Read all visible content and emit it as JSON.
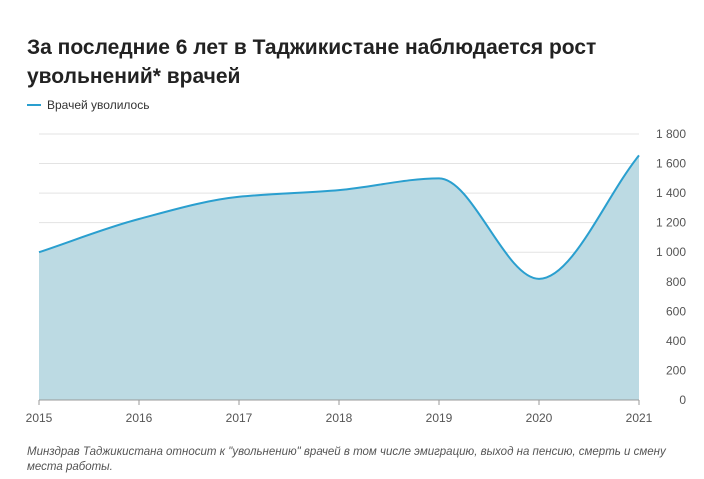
{
  "title": "За последние 6 лет в Таджикистане наблюдается рост увольнений* врачей",
  "footnote": "Минздрав Таджикистана относит к \"увольнению\" врачей в том числе эмиграцию, выход на пенсию, смерть и смену места работы.",
  "colors": {
    "line": "#2a9fcf",
    "area": "#bcdae3",
    "grid": "#e3e3e3",
    "axis": "#999999"
  },
  "chart_data": {
    "type": "area",
    "x": [
      "2015",
      "2016",
      "2017",
      "2018",
      "2019",
      "2020",
      "2021"
    ],
    "series": [
      {
        "name": "Врачей уволилось",
        "values": [
          1000,
          1225,
          1375,
          1420,
          1500,
          820,
          1655
        ]
      }
    ],
    "ylim": [
      0,
      1800
    ],
    "yticks": [
      0,
      200,
      400,
      600,
      800,
      1000,
      1200,
      1400,
      1600,
      1800
    ],
    "ytick_labels": [
      "0",
      "200",
      "400",
      "600",
      "800",
      "1 000",
      "1 200",
      "1 400",
      "1 600",
      "1 800"
    ],
    "y_axis_side": "right",
    "grid": true,
    "legend_position": "top-left",
    "title": "За последние 6 лет в Таджикистане наблюдается рост увольнений* врачей",
    "xlabel": "",
    "ylabel": ""
  }
}
